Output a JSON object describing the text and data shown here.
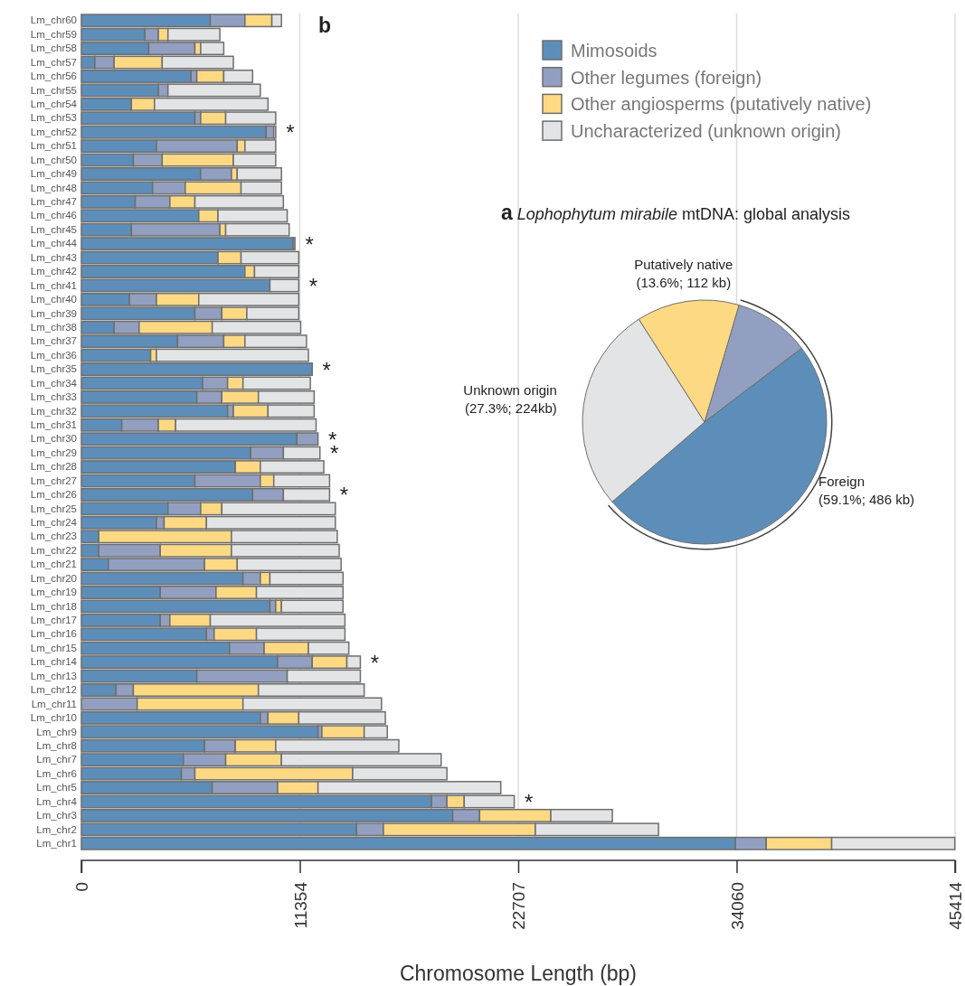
{
  "chart_data": [
    {
      "type": "bar",
      "title": "b",
      "xlabel": "Chromosome Length (bp)",
      "orientation": "horizontal",
      "stacked": true,
      "grid": "x",
      "legend": "top right",
      "categories": [
        "Lm_chr60",
        "Lm_chr59",
        "Lm_chr58",
        "Lm_chr57",
        "Lm_chr56",
        "Lm_chr55",
        "Lm_chr54",
        "Lm_chr53",
        "Lm_chr52",
        "Lm_chr51",
        "Lm_chr50",
        "Lm_chr49",
        "Lm_chr48",
        "Lm_chr47",
        "Lm_chr46",
        "Lm_chr45",
        "Lm_chr44",
        "Lm_chr43",
        "Lm_chr42",
        "Lm_chr41",
        "Lm_chr40",
        "Lm_chr39",
        "Lm_chr38",
        "Lm_chr37",
        "Lm_chr36",
        "Lm_chr35",
        "Lm_chr34",
        "Lm_chr33",
        "Lm_chr32",
        "Lm_chr31",
        "Lm_chr30",
        "Lm_chr29",
        "Lm_chr28",
        "Lm_chr27",
        "Lm_chr26",
        "Lm_chr25",
        "Lm_chr24",
        "Lm_chr23",
        "Lm_chr22",
        "Lm_chr21",
        "Lm_chr20",
        "Lm_chr19",
        "Lm_chr18",
        "Lm_chr17",
        "Lm_chr16",
        "Lm_chr15",
        "Lm_chr14",
        "Lm_chr13",
        "Lm_chr12",
        "Lm_chr11",
        "Lm_chr10",
        "Lm_chr9",
        "Lm_chr8",
        "Lm_chr7",
        "Lm_chr6",
        "Lm_chr5",
        "Lm_chr4",
        "Lm_chr3",
        "Lm_chr2",
        "Lm_chr1"
      ],
      "series": [
        {
          "name": "Mimosoids",
          "color": "#5d8eb9",
          "values": [
            6700,
            3300,
            3500,
            700,
            5700,
            4000,
            2600,
            5900,
            9600,
            3900,
            2700,
            6200,
            3700,
            2800,
            6100,
            2600,
            11000,
            7100,
            8500,
            9800,
            2500,
            5900,
            1700,
            5000,
            3600,
            12000,
            6300,
            6000,
            7600,
            2100,
            11200,
            8800,
            8000,
            5900,
            8900,
            4500,
            3900,
            900,
            900,
            1400,
            8400,
            4100,
            9800,
            4100,
            6500,
            7700,
            10200,
            6000,
            1800,
            0,
            9300,
            12300,
            6400,
            5300,
            5200,
            6800,
            18200,
            19300,
            14300,
            34000
          ]
        },
        {
          "name": "Other legumes (foreign)",
          "color": "#929fc0",
          "values": [
            1800,
            700,
            2400,
            1000,
            300,
            500,
            0,
            300,
            400,
            4200,
            1500,
            1600,
            1700,
            1800,
            0,
            4600,
            100,
            0,
            0,
            0,
            1400,
            1400,
            1300,
            2400,
            0,
            0,
            1300,
            1300,
            300,
            1900,
            1100,
            1700,
            0,
            3400,
            1600,
            1700,
            400,
            0,
            3200,
            5000,
            900,
            2900,
            300,
            500,
            400,
            1800,
            1800,
            4700,
            900,
            2900,
            400,
            200,
            1600,
            2200,
            700,
            3400,
            800,
            1400,
            1400,
            1600
          ]
        },
        {
          "name": "Other angiosperms (putatively native)",
          "color": "#fdd984",
          "values": [
            1400,
            500,
            300,
            2500,
            1400,
            0,
            1200,
            1300,
            0,
            400,
            3700,
            300,
            2900,
            1300,
            1000,
            300,
            0,
            1200,
            500,
            0,
            2200,
            1300,
            3800,
            1100,
            300,
            0,
            800,
            1900,
            1800,
            900,
            0,
            0,
            1300,
            700,
            0,
            1100,
            2200,
            6900,
            3700,
            1700,
            500,
            2100,
            300,
            2100,
            2200,
            2300,
            1800,
            0,
            6500,
            5500,
            1600,
            2200,
            2100,
            2900,
            8200,
            2100,
            900,
            3700,
            7900,
            3400
          ]
        },
        {
          "name": "Uncharacterized (unknown origin)",
          "color": "#e3e4e6",
          "values": [
            500,
            2700,
            1200,
            3700,
            1500,
            4800,
            5900,
            2600,
            100,
            1600,
            2200,
            2300,
            2100,
            4600,
            3600,
            3300,
            0,
            3000,
            2300,
            1500,
            5200,
            2700,
            4600,
            3200,
            7900,
            0,
            3500,
            2900,
            2400,
            7300,
            0,
            1900,
            3300,
            2900,
            2400,
            5900,
            6700,
            5500,
            5600,
            5400,
            3800,
            4500,
            3200,
            7000,
            4600,
            2100,
            700,
            3800,
            5500,
            7200,
            4500,
            1200,
            6400,
            8300,
            4900,
            9500,
            2600,
            3200,
            6400,
            6400
          ],
          "value_labels": [
            null,
            null,
            null,
            null,
            null,
            null,
            null,
            null,
            "*",
            null,
            null,
            null,
            null,
            null,
            null,
            null,
            "*",
            null,
            null,
            "*",
            null,
            null,
            null,
            null,
            null,
            "*",
            null,
            null,
            null,
            null,
            "*",
            "*",
            null,
            null,
            "*",
            null,
            null,
            null,
            null,
            null,
            null,
            null,
            null,
            null,
            null,
            null,
            "*",
            null,
            null,
            null,
            null,
            null,
            null,
            null,
            null,
            null,
            "*",
            null,
            null,
            null
          ]
        }
      ],
      "xlim": [
        0,
        45414
      ],
      "xticks": [
        0,
        11354,
        22707,
        34060,
        45414
      ]
    },
    {
      "type": "pie",
      "title": "a Lophophytum mirabile mtDNA: global analysis",
      "categories": [
        null,
        null,
        "Unknown origin",
        "Putatively native"
      ],
      "values": [
        10.1,
        49.0,
        27.3,
        13.6
      ],
      "colors": [
        "#929fc0",
        "#5d8eb9",
        "#e3e4e6",
        "#fdd984"
      ],
      "value_labels": [
        null,
        null,
        "(27.3%; 224kb)",
        "(13.6%; 112 kb)"
      ],
      "annotations": [
        "Foreign",
        "(59.1%; 486 kb)"
      ]
    }
  ]
}
